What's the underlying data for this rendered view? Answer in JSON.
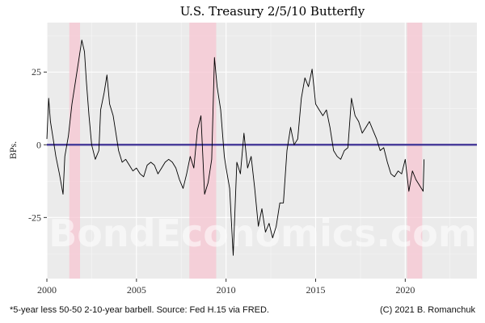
{
  "chart_data": {
    "type": "line",
    "title": "U.S. Treasury 2/5/10 Butterfly",
    "ylabel": "BPs.",
    "xlabel": "",
    "xlim": [
      2000,
      2024
    ],
    "ylim": [
      -46,
      42
    ],
    "x_ticks": [
      2000,
      2005,
      2010,
      2015,
      2020
    ],
    "y_ticks": [
      -25,
      0,
      25
    ],
    "y_tick_labels": [
      "-25",
      "0",
      "25"
    ],
    "grid": true,
    "reference_line": {
      "y": 0,
      "color": "#4b3f9b"
    },
    "recession_shading": [
      {
        "start": 2001.25,
        "end": 2001.85
      },
      {
        "start": 2007.95,
        "end": 2009.45
      },
      {
        "start": 2020.1,
        "end": 2020.95
      }
    ],
    "series": [
      {
        "color": "#000000",
        "x": [
          2000.0,
          2000.1,
          2000.2,
          2000.35,
          2000.5,
          2000.7,
          2000.9,
          2001.0,
          2001.2,
          2001.4,
          2001.6,
          2001.8,
          2001.95,
          2002.1,
          2002.2,
          2002.35,
          2002.5,
          2002.7,
          2002.9,
          2003.0,
          2003.2,
          2003.35,
          2003.5,
          2003.7,
          2003.9,
          2004.0,
          2004.2,
          2004.4,
          2004.6,
          2004.8,
          2005.0,
          2005.2,
          2005.4,
          2005.6,
          2005.8,
          2006.0,
          2006.2,
          2006.4,
          2006.6,
          2006.8,
          2007.0,
          2007.2,
          2007.4,
          2007.6,
          2007.8,
          2008.0,
          2008.2,
          2008.4,
          2008.6,
          2008.8,
          2009.0,
          2009.2,
          2009.35,
          2009.5,
          2009.7,
          2009.9,
          2010.0,
          2010.2,
          2010.4,
          2010.6,
          2010.8,
          2011.0,
          2011.2,
          2011.4,
          2011.6,
          2011.8,
          2012.0,
          2012.2,
          2012.4,
          2012.6,
          2012.8,
          2013.0,
          2013.2,
          2013.4,
          2013.6,
          2013.8,
          2014.0,
          2014.2,
          2014.4,
          2014.6,
          2014.8,
          2015.0,
          2015.2,
          2015.4,
          2015.6,
          2015.8,
          2016.0,
          2016.2,
          2016.4,
          2016.6,
          2016.8,
          2017.0,
          2017.2,
          2017.4,
          2017.6,
          2017.8,
          2018.0,
          2018.2,
          2018.4,
          2018.6,
          2018.8,
          2019.0,
          2019.2,
          2019.4,
          2019.6,
          2019.8,
          2020.0,
          2020.2,
          2020.4,
          2020.6,
          2020.8,
          2021.0,
          2021.05
        ],
        "values": [
          2,
          16,
          8,
          2,
          -4,
          -10,
          -17,
          -4,
          3,
          14,
          22,
          30,
          36,
          32,
          22,
          10,
          0,
          -5,
          -2,
          12,
          18,
          24,
          14,
          10,
          2,
          -2,
          -6,
          -5,
          -7,
          -9,
          -8,
          -10,
          -11,
          -7,
          -6,
          -7,
          -10,
          -8,
          -6,
          -5,
          -6,
          -8,
          -12,
          -15,
          -10,
          -4,
          -8,
          5,
          10,
          -17,
          -13,
          -5,
          30,
          20,
          12,
          -4,
          -8,
          -15,
          -38,
          -6,
          -10,
          4,
          -8,
          -4,
          -15,
          -28,
          -22,
          -30,
          -27,
          -32,
          -28,
          -20,
          -20,
          -2,
          6,
          0,
          2,
          16,
          23,
          20,
          26,
          14,
          12,
          10,
          12,
          6,
          -2,
          -4,
          -5,
          -2,
          -1,
          16,
          10,
          8,
          4,
          6,
          8,
          5,
          2,
          -2,
          -1,
          -6,
          -10,
          -11,
          -9,
          -10,
          -5,
          -16,
          -9,
          -12,
          -14,
          -16,
          -5
        ]
      }
    ]
  },
  "watermark": "BondEconomics.com",
  "footnote": "*5-year less 50-50 2-10-year barbell. Source: Fed H.15 via FRED.",
  "copyright": "(C) 2021 B. Romanchuk"
}
